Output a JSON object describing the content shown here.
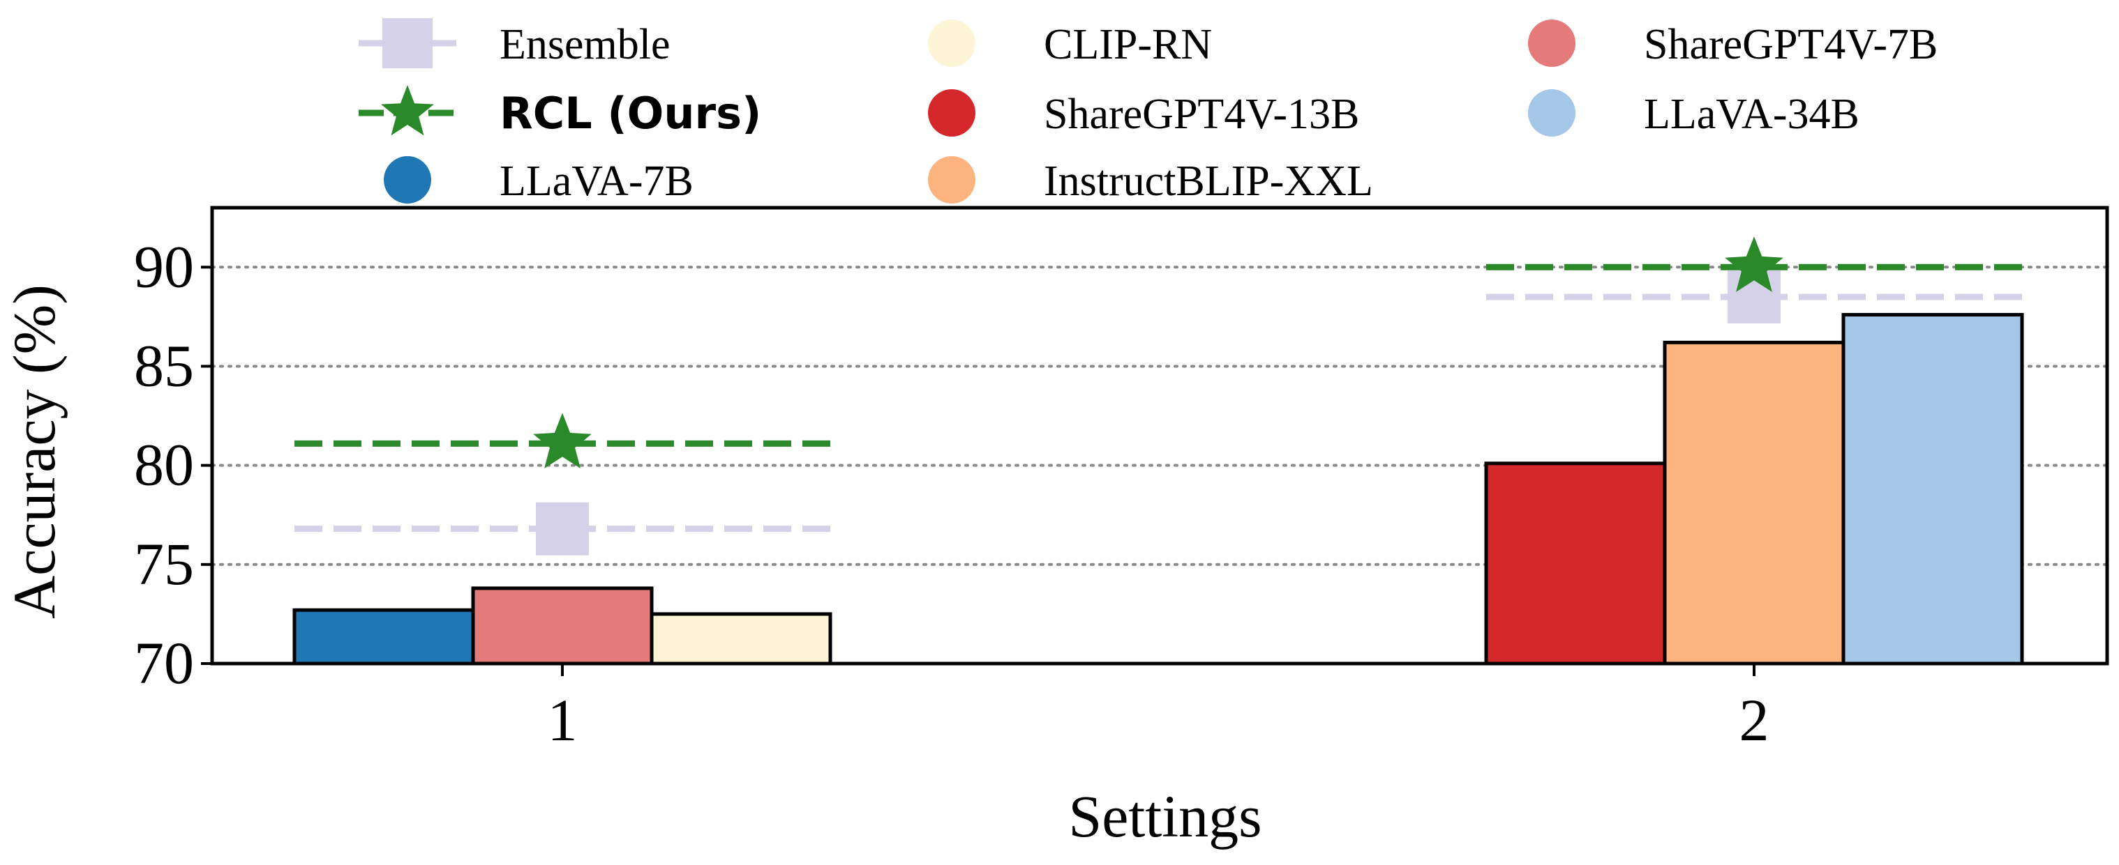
{
  "chart_data": {
    "type": "bar",
    "title": "",
    "xlabel": "Settings",
    "ylabel": "Accuracy (%)",
    "ylim": [
      70,
      93
    ],
    "yticks": [
      "70",
      "75",
      "80",
      "85",
      "90"
    ],
    "grid": "horizontal dotted",
    "legend_position": "top",
    "groups": [
      {
        "label": "1",
        "bars": [
          {
            "name": "LLaVA-7B",
            "value": 72.7
          },
          {
            "name": "ShareGPT4V-7B",
            "value": 73.8
          },
          {
            "name": "CLIP-RN",
            "value": 72.5
          }
        ],
        "ensemble": 76.8,
        "rcl": 81.1
      },
      {
        "label": "2",
        "bars": [
          {
            "name": "ShareGPT4V-13B",
            "value": 80.1
          },
          {
            "name": "InstructBLIP-XXL",
            "value": 86.2
          },
          {
            "name": "LLaVA-34B",
            "value": 87.6
          }
        ],
        "ensemble": 88.5,
        "rcl": 90.0
      }
    ],
    "legend": [
      {
        "label": "Ensemble",
        "marker": "square-line",
        "color": "#d5d1e8"
      },
      {
        "label": "CLIP-RN",
        "marker": "circle",
        "color": "#fdf5d6"
      },
      {
        "label": "ShareGPT4V-7B",
        "marker": "circle",
        "color": "#e57a7a"
      },
      {
        "label": "RCL (Ours)",
        "marker": "star-line",
        "color": "#2a8a2a",
        "bold": true
      },
      {
        "label": "ShareGPT4V-13B",
        "marker": "circle",
        "color": "#d4282b"
      },
      {
        "label": "LLaVA-34B",
        "marker": "circle",
        "color": "#a5c7e8"
      },
      {
        "label": "LLaVA-7B",
        "marker": "circle",
        "color": "#1f77b4"
      },
      {
        "label": "InstructBLIP-XXL",
        "marker": "circle",
        "color": "#fdb37d"
      }
    ],
    "colors": {
      "LLaVA-7B": "#1f77b4",
      "ShareGPT4V-7B": "#e57a7a",
      "CLIP-RN": "#fdf5d6",
      "ShareGPT4V-13B": "#d4282b",
      "InstructBLIP-XXL": "#fdb37d",
      "LLaVA-34B": "#a5c7e8",
      "ensemble": "#d5d1e8",
      "rcl": "#2a8a2a"
    }
  }
}
